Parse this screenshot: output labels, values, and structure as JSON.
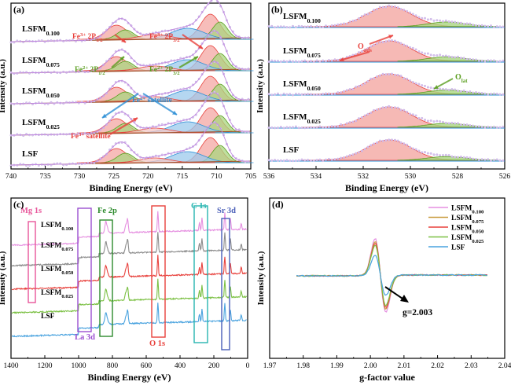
{
  "chart_data": [
    {
      "panel": "(a)",
      "type": "line",
      "title": "",
      "xlabel": "Binding Energy (eV)",
      "ylabel": "Intensity (a.u.)",
      "xlim": [
        740,
        705
      ],
      "x_reversed": true,
      "xticks": [
        "740",
        "735",
        "730",
        "725",
        "720",
        "715",
        "710",
        "705"
      ],
      "samples": [
        "LSFM0.100",
        "LSFM0.075",
        "LSFM0.050",
        "LSFM0.025",
        "LSF"
      ],
      "sample_labels": [
        {
          "base": "LSFM",
          "sub": "0.100"
        },
        {
          "base": "LSFM",
          "sub": "0.075"
        },
        {
          "base": "LSFM",
          "sub": "0.050"
        },
        {
          "base": "LSFM",
          "sub": "0.025"
        },
        {
          "base": "LSF",
          "sub": ""
        }
      ],
      "peaks_eV": {
        "Fe3+ 2p1/2": 724.6,
        "Fe3+ 2p3/2": 710.9,
        "Fe2+ 2p1/2": 723.3,
        "Fe2+ 2p3/2": 709.5,
        "Fe2+ satellite": 714.2,
        "Fe3+ satellite": 719.0
      },
      "annotations": [
        {
          "text": "Fe",
          "sup": "3+",
          "mid": " 2P",
          "sub": "1/2",
          "color": "#e8413c"
        },
        {
          "text": "Fe",
          "sup": "3+",
          "mid": " 2P",
          "sub": "3/2",
          "color": "#e8413c"
        },
        {
          "text": "Fe",
          "sup": "2+",
          "mid": " 2P",
          "sub": "1/2",
          "color": "#5a9e1f"
        },
        {
          "text": "Fe",
          "sup": "2+",
          "mid": " 2P",
          "sub": "3/2",
          "color": "#5a9e1f"
        },
        {
          "text": "Fe",
          "sup": "2+",
          "mid": " satellite",
          "sub": "",
          "color": "#2e90d6"
        },
        {
          "text": "Fe",
          "sup": "3+",
          "mid": " satellite",
          "sub": "",
          "color": "#e8413c"
        }
      ]
    },
    {
      "panel": "(b)",
      "type": "line",
      "title": "",
      "xlabel": "Binding Energy (eV)",
      "ylabel": "Intensity (a.u.)",
      "xlim": [
        537,
        526
      ],
      "x_reversed": true,
      "xticks": [
        "536",
        "534",
        "532",
        "530",
        "528",
        "526"
      ],
      "samples": [
        "LSFM0.100",
        "LSFM0.075",
        "LSFM0.050",
        "LSFM0.025",
        "LSF"
      ],
      "peaks_eV": {
        "O ads": 531.4,
        "O lat": 528.7
      },
      "annotations": [
        {
          "text": "O",
          "sub": "ads",
          "color": "#e8413c"
        },
        {
          "text": "O",
          "sub": "lat",
          "color": "#5a9e1f"
        }
      ]
    },
    {
      "panel": "(c)",
      "type": "line",
      "title": "",
      "xlabel": "Binding Energy (eV)",
      "ylabel": "Intensity (a.u.)",
      "xlim": [
        1400,
        0
      ],
      "x_reversed": true,
      "xticks": [
        "1400",
        "1200",
        "1000",
        "800",
        "600",
        "400",
        "200",
        "0"
      ],
      "series": [
        {
          "name": "LSFM0.100",
          "color": "#e58fe0"
        },
        {
          "name": "LSFM0.075",
          "color": "#8c8c8c"
        },
        {
          "name": "LSFM0.050",
          "color": "#e8413c"
        },
        {
          "name": "LSFM0.025",
          "color": "#7bc043"
        },
        {
          "name": "LSF",
          "color": "#4aa3df"
        }
      ],
      "regions": [
        {
          "label": "Mg 1s",
          "color": "#e8559a",
          "range": [
            1320,
            1290
          ]
        },
        {
          "label": "La 3d",
          "color": "#9b4fd0",
          "range": [
            1000,
            960
          ]
        },
        {
          "label": "Fe 2p",
          "color": "#2c8a2c",
          "range": [
            870,
            830
          ]
        },
        {
          "label": "O 1s",
          "color": "#e8413c",
          "range": [
            595,
            540
          ]
        },
        {
          "label": "C 1s",
          "color": "#27b5b0",
          "range": [
            305,
            250
          ]
        },
        {
          "label": "Sr 3d",
          "color": "#4a5fb8",
          "range": [
            150,
            115
          ]
        }
      ]
    },
    {
      "panel": "(d)",
      "type": "line",
      "title": "",
      "xlabel": "g-factor value",
      "ylabel": "Intensity (a.u.)",
      "xlim": [
        1.97,
        2.04
      ],
      "xticks": [
        "1.97",
        "1.98",
        "1.99",
        "2.00",
        "2.01",
        "2.02",
        "2.03",
        "2.04"
      ],
      "g_value": 2.003,
      "annotation": "g=2.003",
      "series": [
        {
          "name": "LSFM0.100",
          "color": "#e58fe0",
          "amplitude": 1.0
        },
        {
          "name": "LSFM0.075",
          "color": "#c89a3a",
          "amplitude": 0.92
        },
        {
          "name": "LSFM0.050",
          "color": "#e8413c",
          "amplitude": 0.87
        },
        {
          "name": "LSFM0.025",
          "color": "#7bc043",
          "amplitude": 0.82
        },
        {
          "name": "LSF",
          "color": "#4aa3df",
          "amplitude": 0.55
        }
      ]
    }
  ]
}
